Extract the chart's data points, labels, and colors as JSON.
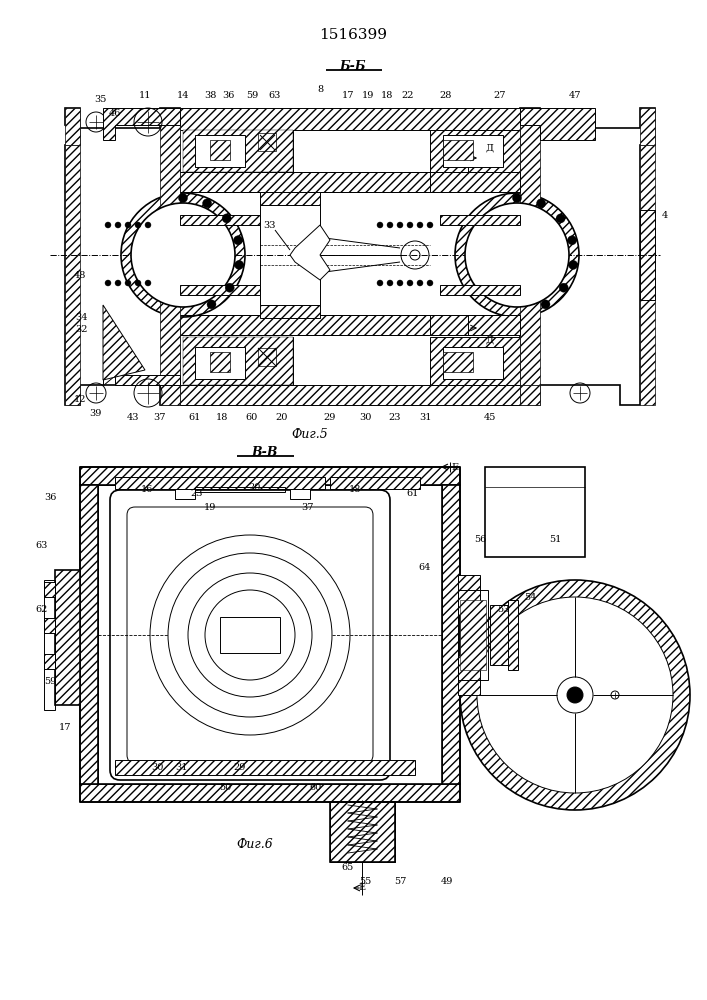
{
  "title": "1516399",
  "fig5_label": "Фиг.5",
  "fig5_section": "Б-Б",
  "fig6_label": "Фиг.6",
  "fig6_section": "В-В",
  "bg_color": "#ffffff",
  "line_color": "#000000",
  "D_label": "Д",
  "E_label": "E"
}
